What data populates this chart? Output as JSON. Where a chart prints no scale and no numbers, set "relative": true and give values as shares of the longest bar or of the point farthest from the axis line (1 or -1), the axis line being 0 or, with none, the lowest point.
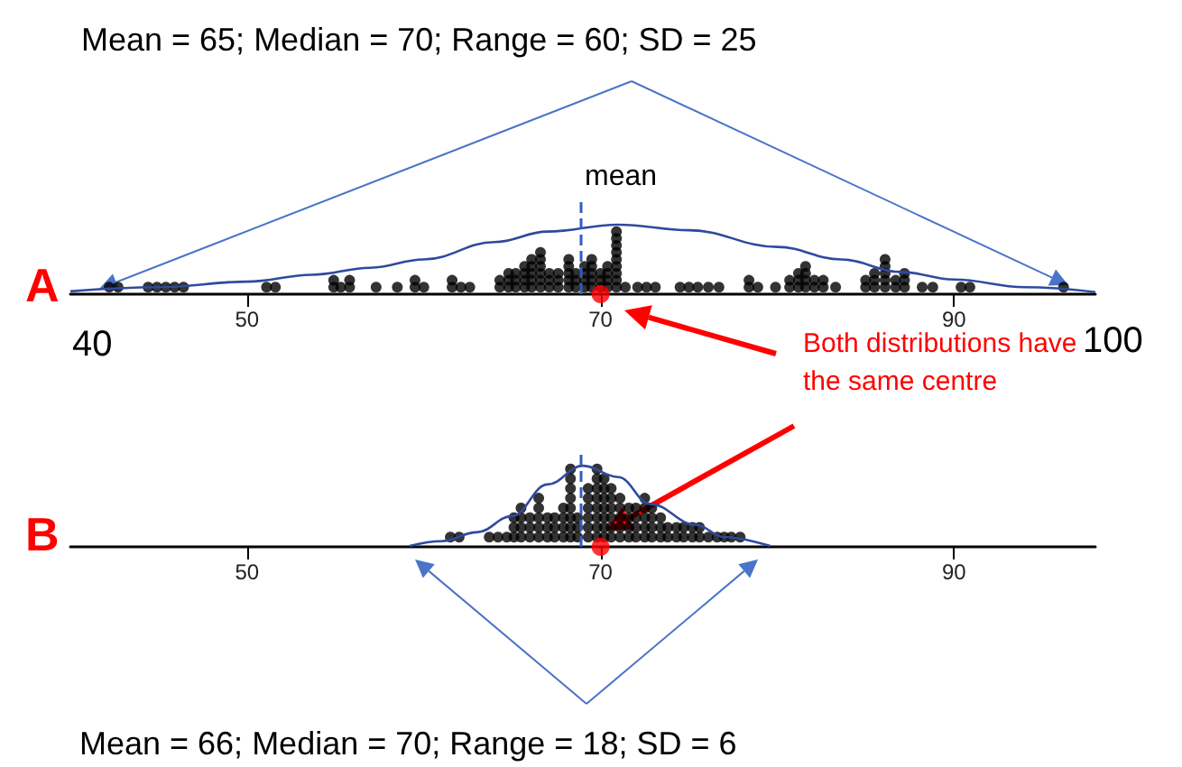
{
  "chart_data": [
    {
      "type": "scatter",
      "title": "Mean = 65; Median = 70; Range = 60; SD = 25",
      "annotations": [
        "A",
        "40",
        "100",
        "Both distributions have the same centre"
      ],
      "xlim": [
        40,
        98
      ],
      "xticks": [
        50,
        70,
        90
      ],
      "relative": true,
      "tick_labels": "x",
      "grid": false,
      "marker": "circle",
      "ref_lines": [
        {
          "axis": "x",
          "value": 68.9,
          "label": "mean",
          "color": "#2f5fc4",
          "line_style": "dashed"
        }
      ],
      "series": [
        {
          "color": "#000000",
          "x": [
            42.2,
            42.7,
            44.4,
            44.9,
            45.4,
            45.9,
            46.4,
            51.1,
            51.6,
            54.9,
            54.9,
            55.3,
            55.8,
            55.8,
            57.3,
            58.5,
            59.5,
            59.5,
            60.0,
            61.6,
            61.6,
            62.1,
            62.6,
            64.3,
            64.3,
            64.8,
            64.8,
            64.8,
            65.2,
            65.2,
            65.2,
            65.7,
            65.7,
            65.7,
            65.7,
            66.1,
            66.1,
            66.1,
            66.1,
            66.1,
            66.6,
            66.6,
            66.6,
            66.6,
            66.6,
            66.6,
            67.1,
            67.1,
            67.1,
            67.6,
            67.6,
            67.6,
            68.2,
            68.2,
            68.2,
            68.2,
            68.2,
            68.6,
            68.6,
            68.6,
            69.1,
            69.1,
            69.1,
            69.1,
            69.5,
            69.5,
            69.5,
            69.5,
            69.5,
            70.0,
            70.0,
            70.0,
            70.4,
            70.4,
            70.4,
            70.4,
            70.9,
            70.9,
            70.9,
            70.9,
            70.9,
            70.9,
            70.9,
            70.9,
            70.9,
            71.4,
            72.1,
            72.6,
            73.1,
            74.5,
            75.0,
            75.5,
            76.1,
            76.7,
            78.4,
            78.4,
            78.9,
            79.9,
            80.7,
            80.7,
            81.2,
            81.2,
            81.2,
            81.6,
            81.6,
            81.6,
            81.6,
            82.1,
            82.1,
            82.6,
            82.6,
            83.3,
            85.0,
            85.0,
            85.5,
            85.5,
            85.5,
            86.1,
            86.1,
            86.1,
            86.1,
            86.1,
            86.7,
            86.7,
            87.2,
            87.2,
            87.2,
            88.2,
            88.8,
            90.4,
            90.9,
            96.2
          ],
          "values": [
            0.1,
            0.1,
            0.1,
            0.1,
            0.1,
            0.1,
            0.1,
            0.1,
            0.1,
            0.1,
            0.2,
            0.1,
            0.1,
            0.2,
            0.1,
            0.1,
            0.1,
            0.2,
            0.1,
            0.1,
            0.2,
            0.1,
            0.1,
            0.1,
            0.2,
            0.1,
            0.2,
            0.3,
            0.1,
            0.2,
            0.3,
            0.1,
            0.2,
            0.3,
            0.4,
            0.1,
            0.2,
            0.3,
            0.4,
            0.5,
            0.1,
            0.2,
            0.3,
            0.4,
            0.5,
            0.6,
            0.1,
            0.2,
            0.3,
            0.1,
            0.2,
            0.3,
            0.1,
            0.2,
            0.3,
            0.4,
            0.5,
            0.1,
            0.2,
            0.3,
            0.1,
            0.2,
            0.3,
            0.4,
            0.1,
            0.2,
            0.3,
            0.4,
            0.5,
            0.1,
            0.2,
            0.3,
            0.1,
            0.2,
            0.3,
            0.4,
            0.1,
            0.2,
            0.3,
            0.4,
            0.5,
            0.6,
            0.7,
            0.8,
            0.9,
            0.1,
            0.1,
            0.1,
            0.1,
            0.1,
            0.1,
            0.1,
            0.1,
            0.1,
            0.1,
            0.2,
            0.1,
            0.1,
            0.1,
            0.2,
            0.1,
            0.2,
            0.3,
            0.1,
            0.2,
            0.3,
            0.4,
            0.1,
            0.2,
            0.1,
            0.2,
            0.1,
            0.1,
            0.2,
            0.1,
            0.2,
            0.3,
            0.1,
            0.2,
            0.3,
            0.4,
            0.5,
            0.1,
            0.2,
            0.1,
            0.2,
            0.3,
            0.1,
            0.1,
            0.1,
            0.1,
            0.1
          ]
        },
        {
          "type": "line",
          "color": "#2e4a9e",
          "marker": "none",
          "x": [
            40,
            45,
            50,
            53.7,
            57,
            60,
            64,
            67,
            71,
            75,
            80,
            83.6,
            87,
            90,
            94,
            98
          ],
          "values": [
            0.04,
            0.1,
            0.18,
            0.28,
            0.38,
            0.5,
            0.75,
            0.9,
            1,
            0.92,
            0.68,
            0.5,
            0.32,
            0.21,
            0.1,
            0.03
          ]
        },
        {
          "color": "#ff0000",
          "x": [
            70
          ],
          "values": [
            0
          ]
        }
      ]
    },
    {
      "type": "scatter",
      "annotations": [
        "B",
        "Mean = 66; Median = 70; Range = 18; SD = 6"
      ],
      "xlim": [
        40,
        98
      ],
      "xticks": [
        50,
        70,
        90
      ],
      "relative": true,
      "tick_labels": "x",
      "grid": false,
      "marker": "circle",
      "ref_lines": [
        {
          "axis": "x",
          "value": 68.9,
          "color": "#2f5fc4",
          "line_style": "dashed"
        }
      ],
      "series": [
        {
          "color": "#000000",
          "x": [
            61.5,
            62.0,
            63.7,
            64.2,
            64.7,
            65.1,
            65.1,
            65.1,
            65.5,
            65.5,
            65.5,
            65.5,
            66.0,
            66.0,
            66.0,
            66.5,
            66.5,
            66.5,
            66.5,
            66.5,
            67.0,
            67.0,
            67.0,
            67.4,
            67.4,
            67.4,
            67.9,
            67.9,
            67.9,
            67.9,
            68.3,
            68.3,
            68.3,
            68.3,
            68.3,
            68.3,
            68.3,
            68.3,
            68.7,
            68.7,
            68.7,
            69.3,
            69.3,
            69.3,
            69.3,
            69.3,
            69.3,
            69.8,
            69.8,
            69.8,
            69.8,
            69.8,
            69.8,
            69.8,
            69.8,
            70.2,
            70.2,
            70.2,
            70.2,
            70.2,
            70.2,
            70.2,
            70.6,
            70.6,
            70.6,
            70.6,
            70.6,
            70.6,
            71.1,
            71.1,
            71.1,
            71.1,
            71.1,
            71.6,
            71.6,
            71.6,
            71.6,
            72.0,
            72.0,
            72.0,
            72.0,
            72.5,
            72.5,
            72.5,
            72.5,
            72.5,
            72.9,
            72.9,
            72.9,
            72.9,
            73.4,
            73.4,
            73.4,
            73.8,
            73.8,
            74.3,
            74.3,
            74.7,
            74.7,
            75.2,
            75.2,
            75.6,
            75.6,
            76.1,
            76.6,
            77.0,
            77.4,
            77.9
          ],
          "values": [
            0.12,
            0.12,
            0.12,
            0.12,
            0.12,
            0.12,
            0.24,
            0.36,
            0.12,
            0.24,
            0.36,
            0.48,
            0.12,
            0.24,
            0.36,
            0.12,
            0.24,
            0.36,
            0.48,
            0.6,
            0.12,
            0.24,
            0.36,
            0.12,
            0.24,
            0.36,
            0.12,
            0.24,
            0.36,
            0.48,
            0.12,
            0.24,
            0.36,
            0.48,
            0.6,
            0.72,
            0.84,
            0.96,
            0.12,
            0.24,
            0.36,
            0.12,
            0.24,
            0.36,
            0.48,
            0.6,
            0.72,
            0.12,
            0.24,
            0.36,
            0.48,
            0.6,
            0.72,
            0.84,
            0.96,
            0.12,
            0.24,
            0.36,
            0.48,
            0.6,
            0.72,
            0.84,
            0.12,
            0.24,
            0.36,
            0.48,
            0.6,
            0.72,
            0.12,
            0.24,
            0.36,
            0.48,
            0.6,
            0.12,
            0.24,
            0.36,
            0.48,
            0.12,
            0.24,
            0.36,
            0.48,
            0.12,
            0.24,
            0.36,
            0.48,
            0.6,
            0.12,
            0.24,
            0.36,
            0.48,
            0.12,
            0.24,
            0.36,
            0.12,
            0.24,
            0.12,
            0.24,
            0.12,
            0.24,
            0.12,
            0.24,
            0.12,
            0.24,
            0.12,
            0.12,
            0.12,
            0.12,
            0.12
          ]
        },
        {
          "type": "line",
          "color": "#2e4a9e",
          "marker": "none",
          "x": [
            59.2,
            61,
            63,
            65,
            67,
            69,
            71,
            72.8,
            75.4,
            77,
            79.6
          ],
          "values": [
            0.01,
            0.07,
            0.18,
            0.38,
            0.77,
            1,
            0.86,
            0.53,
            0.27,
            0.12,
            0.01
          ]
        },
        {
          "color": "#ff0000",
          "x": [
            70
          ],
          "values": [
            0
          ]
        }
      ]
    }
  ]
}
